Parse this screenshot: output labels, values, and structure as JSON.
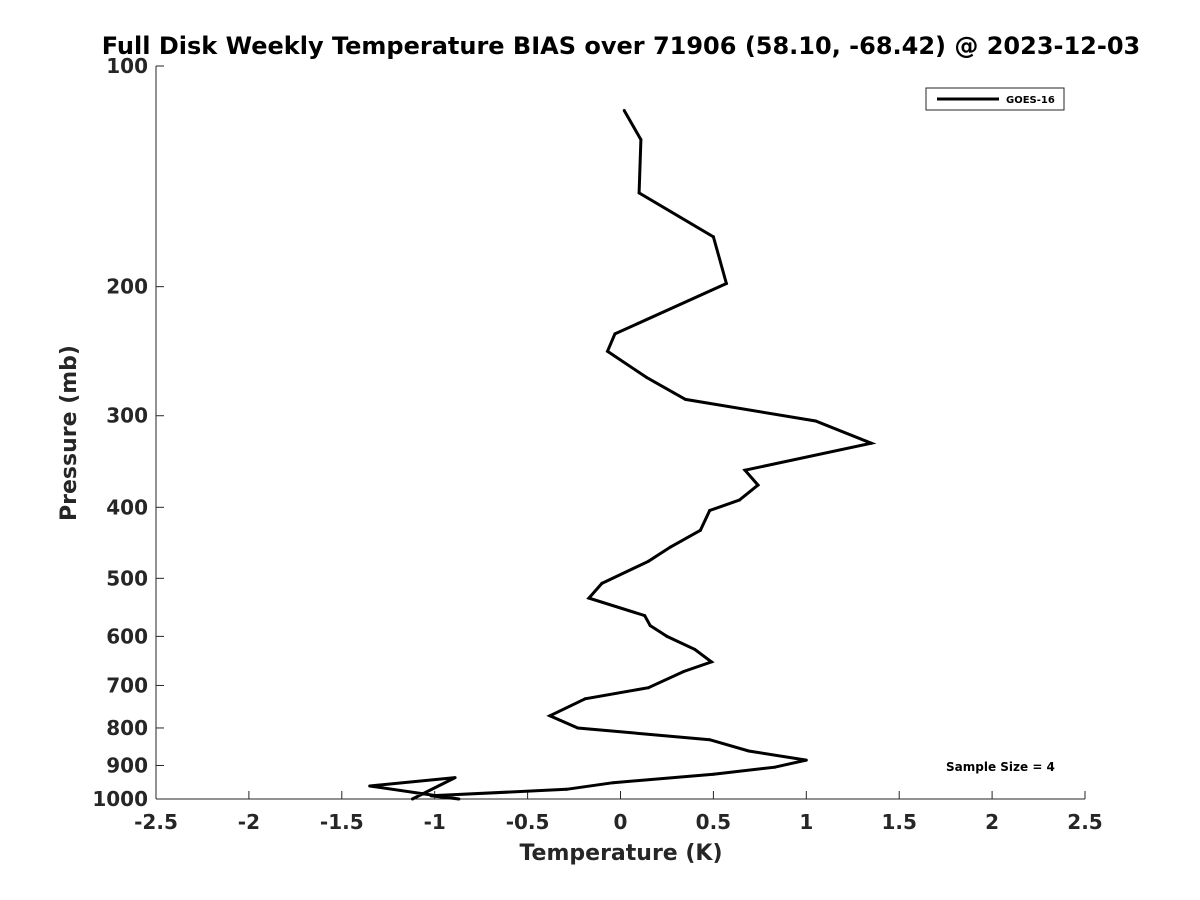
{
  "chart_data": {
    "type": "line",
    "title": "Full Disk Weekly Temperature BIAS over 71906 (58.10, -68.42) @ 2023-12-03",
    "xlabel": "Temperature (K)",
    "ylabel": "Pressure (mb)",
    "xlim": [
      -2.5,
      2.5
    ],
    "ylim": [
      1000,
      100
    ],
    "y_scale": "log",
    "y_reversed": true,
    "x_ticks": [
      "-2.5",
      "-2",
      "-1.5",
      "-1",
      "-0.5",
      "0",
      "0.5",
      "1",
      "1.5",
      "2",
      "2.5"
    ],
    "y_ticks": [
      "100",
      "200",
      "300",
      "400",
      "500",
      "600",
      "700",
      "800",
      "900",
      "1000"
    ],
    "legend_position": "top-right",
    "annotation": "Sample Size = 4",
    "series": [
      {
        "name": "GOES-16",
        "color": "#000000",
        "x": [
          0.02,
          0.11,
          0.1,
          0.5,
          0.57,
          -0.03,
          -0.07,
          0.14,
          0.35,
          1.05,
          1.35,
          0.67,
          0.74,
          0.64,
          0.48,
          0.43,
          0.27,
          0.15,
          -0.1,
          -0.17,
          0.13,
          0.16,
          0.25,
          0.4,
          0.49,
          0.34,
          0.15,
          -0.19,
          -0.38,
          -0.23,
          0.48,
          0.69,
          1.0,
          0.83,
          0.5,
          -0.04,
          -0.29,
          -1.02,
          -0.87,
          -1.35,
          -0.89,
          -1.12
        ],
        "y": [
          115,
          126,
          149,
          171,
          198,
          232,
          245,
          266,
          285,
          305,
          327,
          356,
          373,
          391,
          404,
          430,
          453,
          474,
          508,
          532,
          562,
          580,
          600,
          625,
          650,
          670,
          705,
          730,
          770,
          800,
          830,
          860,
          885,
          905,
          925,
          950,
          970,
          990,
          1000,
          960,
          935,
          1000
        ]
      }
    ]
  }
}
